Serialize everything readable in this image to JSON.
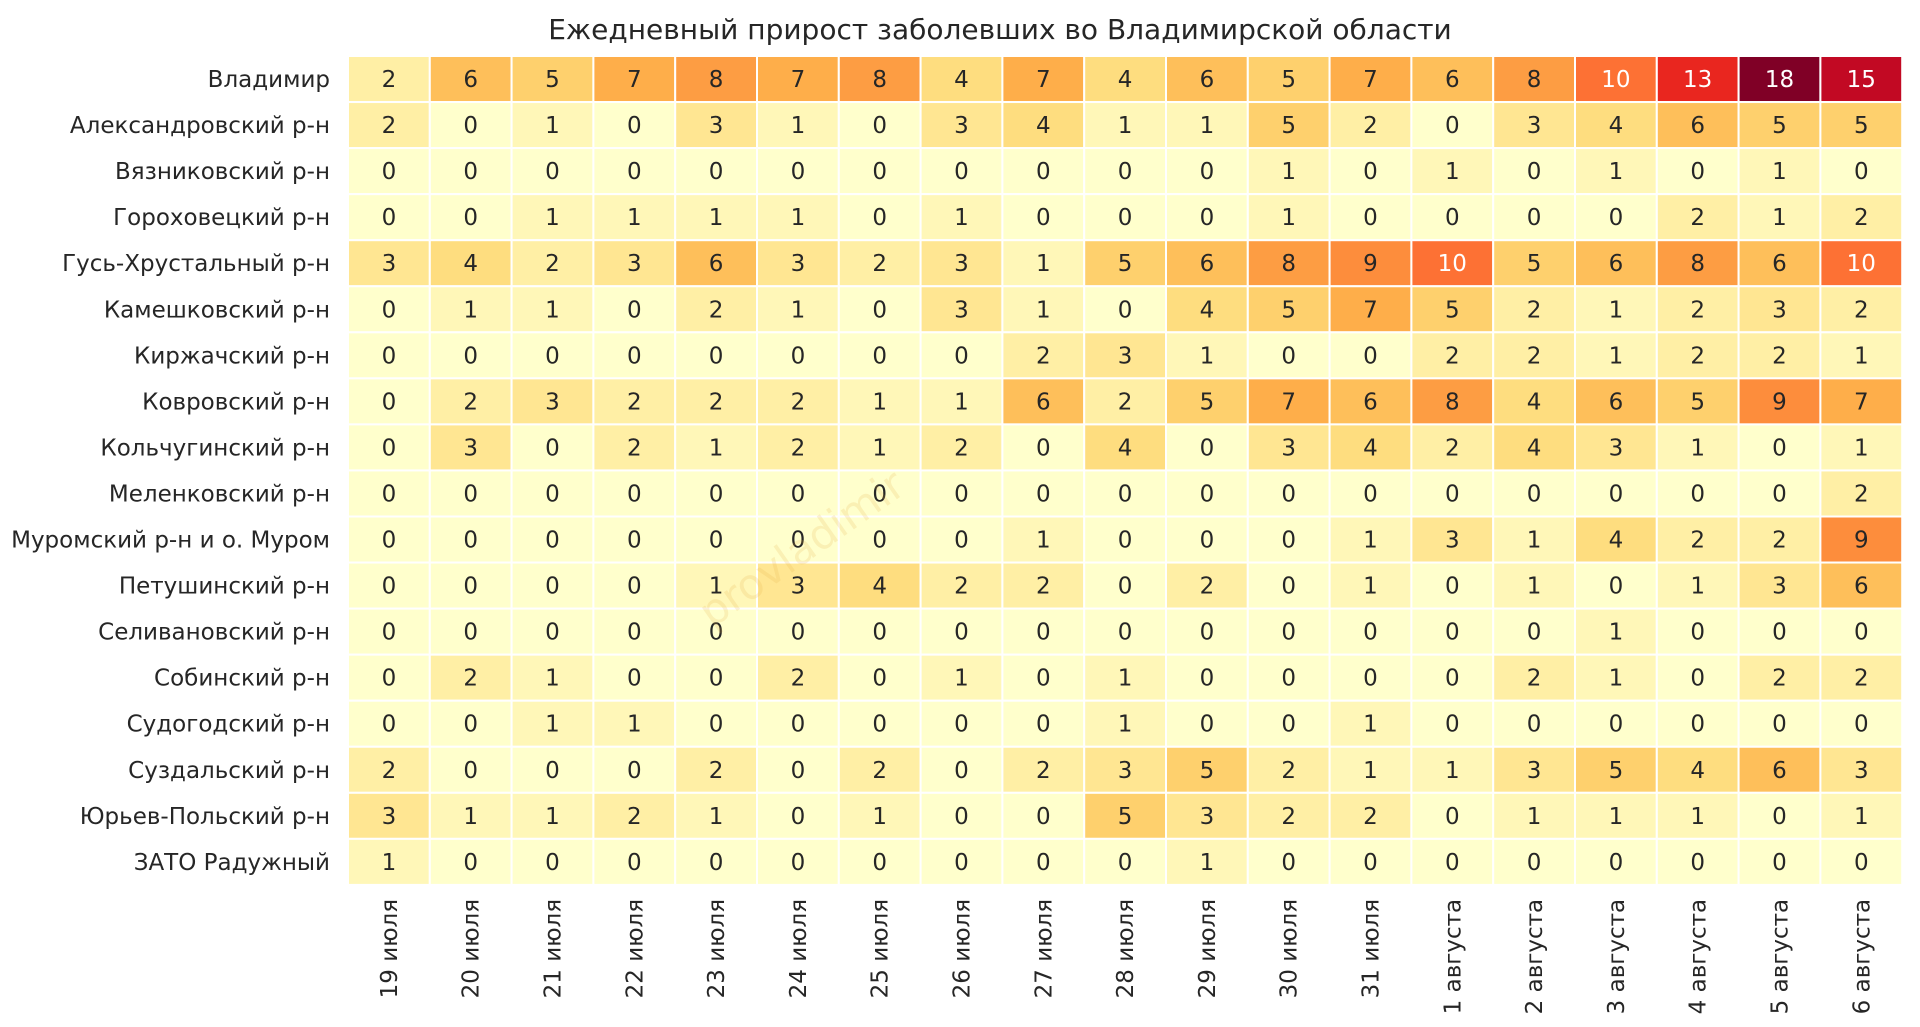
{
  "chart_data": {
    "type": "heatmap",
    "title": "Ежедневный прирост заболевших во Владимирской области",
    "watermark": "provladimir",
    "colormap": [
      "#ffffcc",
      "#ffeda0",
      "#fed976",
      "#feb24c",
      "#fd8d3c",
      "#fc4e2a",
      "#e31a1c",
      "#b10026",
      "#800026"
    ],
    "vmin": 0,
    "vmax": 18,
    "columns": [
      "19 июля",
      "20 июля",
      "21 июля",
      "22 июля",
      "23 июля",
      "24 июля",
      "25 июля",
      "26 июля",
      "27 июля",
      "28 июля",
      "29 июля",
      "30 июля",
      "31 июля",
      "1 августа",
      "2 августа",
      "3 августа",
      "4 августа",
      "5 августа",
      "6 августа"
    ],
    "rows": [
      "Владимир",
      "Александровский р-н",
      "Вязниковский р-н",
      "Гороховецкий р-н",
      "Гусь-Хрустальный р-н",
      "Камешковский р-н",
      "Киржачский р-н",
      "Ковровский р-н",
      "Кольчугинский р-н",
      "Меленковский р-н",
      "Муромский р-н и о. Муром",
      "Петушинский р-н",
      "Селивановский р-н",
      "Собинский р-н",
      "Судогодский р-н",
      "Суздальский р-н",
      "Юрьев-Польский р-н",
      "ЗАТО Радужный"
    ],
    "values": [
      [
        2,
        6,
        5,
        7,
        8,
        7,
        8,
        4,
        7,
        4,
        6,
        5,
        7,
        6,
        8,
        10,
        13,
        18,
        15
      ],
      [
        2,
        0,
        1,
        0,
        3,
        1,
        0,
        3,
        4,
        1,
        1,
        5,
        2,
        0,
        3,
        4,
        6,
        5,
        5
      ],
      [
        0,
        0,
        0,
        0,
        0,
        0,
        0,
        0,
        0,
        0,
        0,
        1,
        0,
        1,
        0,
        1,
        0,
        1,
        0
      ],
      [
        0,
        0,
        1,
        1,
        1,
        1,
        0,
        1,
        0,
        0,
        0,
        1,
        0,
        0,
        0,
        0,
        2,
        1,
        2
      ],
      [
        3,
        4,
        2,
        3,
        6,
        3,
        2,
        3,
        1,
        5,
        6,
        8,
        9,
        10,
        5,
        6,
        8,
        6,
        10
      ],
      [
        0,
        1,
        1,
        0,
        2,
        1,
        0,
        3,
        1,
        0,
        4,
        5,
        7,
        5,
        2,
        1,
        2,
        3,
        2
      ],
      [
        0,
        0,
        0,
        0,
        0,
        0,
        0,
        0,
        2,
        3,
        1,
        0,
        0,
        2,
        2,
        1,
        2,
        2,
        1
      ],
      [
        0,
        2,
        3,
        2,
        2,
        2,
        1,
        1,
        6,
        2,
        5,
        7,
        6,
        8,
        4,
        6,
        5,
        9,
        7
      ],
      [
        0,
        3,
        0,
        2,
        1,
        2,
        1,
        2,
        0,
        4,
        0,
        3,
        4,
        2,
        4,
        3,
        1,
        0,
        1
      ],
      [
        0,
        0,
        0,
        0,
        0,
        0,
        0,
        0,
        0,
        0,
        0,
        0,
        0,
        0,
        0,
        0,
        0,
        0,
        2
      ],
      [
        0,
        0,
        0,
        0,
        0,
        0,
        0,
        0,
        1,
        0,
        0,
        0,
        1,
        3,
        1,
        4,
        2,
        2,
        9
      ],
      [
        0,
        0,
        0,
        0,
        1,
        3,
        4,
        2,
        2,
        0,
        2,
        0,
        1,
        0,
        1,
        0,
        1,
        3,
        6
      ],
      [
        0,
        0,
        0,
        0,
        0,
        0,
        0,
        0,
        0,
        0,
        0,
        0,
        0,
        0,
        0,
        1,
        0,
        0,
        0
      ],
      [
        0,
        2,
        1,
        0,
        0,
        2,
        0,
        1,
        0,
        1,
        0,
        0,
        0,
        0,
        2,
        1,
        0,
        2,
        2
      ],
      [
        0,
        0,
        1,
        1,
        0,
        0,
        0,
        0,
        0,
        1,
        0,
        0,
        1,
        0,
        0,
        0,
        0,
        0,
        0
      ],
      [
        2,
        0,
        0,
        0,
        2,
        0,
        2,
        0,
        2,
        3,
        5,
        2,
        1,
        1,
        3,
        5,
        4,
        6,
        3
      ],
      [
        3,
        1,
        1,
        2,
        1,
        0,
        1,
        0,
        0,
        5,
        3,
        2,
        2,
        0,
        1,
        1,
        1,
        0,
        1
      ],
      [
        1,
        0,
        0,
        0,
        0,
        0,
        0,
        0,
        0,
        0,
        1,
        0,
        0,
        0,
        0,
        0,
        0,
        0,
        0
      ]
    ]
  }
}
